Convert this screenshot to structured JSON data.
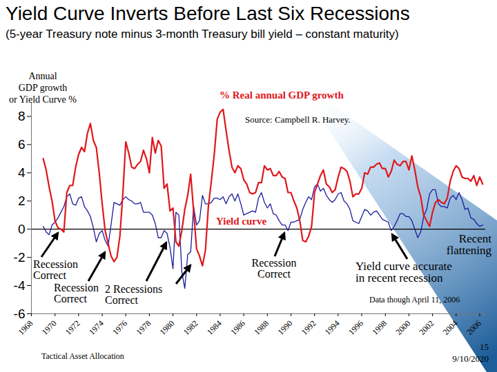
{
  "chart_data": {
    "type": "line",
    "title": "Yield Curve Inverts Before Last Six Recessions",
    "subtitle": "(5-year Treasury note minus 3-month Treasury bill yield – constant maturity)",
    "y_label": [
      "Annual",
      "GDP growth",
      "or Yield Curve %"
    ],
    "source": "Source: Campbell R. Harvey.",
    "note": "Data though April 11, 2006",
    "annotations": [
      {
        "text": [
          "Recession",
          "Correct"
        ]
      },
      {
        "text": [
          "Recession",
          "Correct"
        ]
      },
      {
        "text": [
          "2 Recessions",
          "Correct"
        ]
      },
      {
        "text": [
          "Recession",
          "Correct"
        ]
      },
      {
        "text": [
          "Yield curve accurate",
          "in recent recession"
        ]
      },
      {
        "text": [
          "Recent",
          "flattening"
        ]
      }
    ],
    "footer": {
      "left": "Tactical Asset Allocation",
      "page": "15",
      "date": "9/10/2020"
    },
    "x": [
      1969,
      1969.25,
      1969.5,
      1969.75,
      1970,
      1970.25,
      1970.5,
      1970.75,
      1971,
      1971.25,
      1971.5,
      1971.75,
      1972,
      1972.25,
      1972.5,
      1972.75,
      1973,
      1973.25,
      1973.5,
      1973.75,
      1974,
      1974.25,
      1974.5,
      1974.75,
      1975,
      1975.25,
      1975.5,
      1975.75,
      1976,
      1976.25,
      1976.5,
      1976.75,
      1977,
      1977.25,
      1977.5,
      1977.75,
      1978,
      1978.25,
      1978.5,
      1978.75,
      1979,
      1979.25,
      1979.5,
      1979.75,
      1980,
      1980.25,
      1980.5,
      1980.75,
      1981,
      1981.25,
      1981.5,
      1981.75,
      1982,
      1982.25,
      1982.5,
      1982.75,
      1983,
      1983.25,
      1983.5,
      1983.75,
      1984,
      1984.25,
      1984.5,
      1984.75,
      1985,
      1985.25,
      1985.5,
      1985.75,
      1986,
      1986.25,
      1986.5,
      1986.75,
      1987,
      1987.25,
      1987.5,
      1987.75,
      1988,
      1988.25,
      1988.5,
      1988.75,
      1989,
      1989.25,
      1989.5,
      1989.75,
      1990,
      1990.25,
      1990.5,
      1990.75,
      1991,
      1991.25,
      1991.5,
      1991.75,
      1992,
      1992.25,
      1992.5,
      1992.75,
      1993,
      1993.25,
      1993.5,
      1993.75,
      1994,
      1994.25,
      1994.5,
      1994.75,
      1995,
      1995.25,
      1995.5,
      1995.75,
      1996,
      1996.25,
      1996.5,
      1996.75,
      1997,
      1997.25,
      1997.5,
      1997.75,
      1998,
      1998.25,
      1998.5,
      1998.75,
      1999,
      1999.25,
      1999.5,
      1999.75,
      2000,
      2000.25,
      2000.5,
      2000.75,
      2001,
      2001.25,
      2001.5,
      2001.75,
      2002,
      2002.25,
      2002.5,
      2002.75,
      2003,
      2003.25,
      2003.5,
      2003.75,
      2004,
      2004.25,
      2004.5,
      2004.75,
      2005,
      2005.25,
      2005.5,
      2005.75,
      2006,
      2006.25
    ],
    "series": [
      {
        "name": "% Real annual GDP growth",
        "color": "#e0161b",
        "values": [
          5.0,
          4.2,
          3.0,
          2.0,
          0.6,
          0.1,
          0.0,
          -0.2,
          2.6,
          3.1,
          3.1,
          4.4,
          5.3,
          5.8,
          5.5,
          6.8,
          7.5,
          6.3,
          5.8,
          4.0,
          1.8,
          -0.1,
          -1.0,
          -1.9,
          -2.3,
          -2.0,
          -0.5,
          2.5,
          6.2,
          5.4,
          4.4,
          4.3,
          4.6,
          4.8,
          5.6,
          5.0,
          4.0,
          6.5,
          5.4,
          6.3,
          5.9,
          2.9,
          3.2,
          1.3,
          1.5,
          -0.9,
          -1.2,
          -0.1,
          1.4,
          2.4,
          3.9,
          1.3,
          -1.4,
          -1.9,
          -2.6,
          -1.5,
          1.6,
          3.4,
          5.3,
          7.8,
          8.3,
          8.5,
          7.0,
          5.6,
          4.4,
          4.0,
          4.5,
          4.3,
          3.5,
          3.2,
          2.6,
          2.5,
          2.6,
          3.3,
          3.3,
          4.5,
          4.2,
          4.3,
          3.8,
          3.8,
          4.1,
          3.7,
          3.6,
          2.6,
          2.6,
          2.0,
          1.5,
          0.6,
          -0.8,
          -0.9,
          -0.5,
          0.2,
          2.6,
          3.2,
          3.8,
          4.2,
          3.2,
          3.0,
          2.6,
          2.8,
          3.7,
          4.4,
          4.3,
          4.1,
          3.4,
          2.3,
          2.5,
          2.5,
          2.9,
          4.0,
          3.9,
          4.4,
          4.4,
          4.6,
          4.7,
          4.3,
          4.3,
          3.7,
          4.1,
          4.9,
          4.6,
          4.5,
          4.8,
          4.8,
          4.2,
          5.2,
          4.2,
          3.0,
          2.3,
          1.0,
          0.6,
          0.2,
          1.2,
          1.9,
          2.1,
          1.9,
          1.8,
          2.2,
          3.4,
          4.1,
          4.5,
          4.3,
          3.7,
          3.6,
          3.6,
          3.4,
          3.8,
          3.1,
          3.7,
          3.2
        ]
      },
      {
        "name": "Yield curve",
        "color": "#1a1a9c",
        "values": [
          0.2,
          -0.2,
          -0.4,
          0.3,
          0.5,
          0.8,
          1.2,
          1.6,
          2.3,
          2.5,
          1.8,
          1.7,
          2.2,
          2.3,
          1.6,
          1.3,
          0.9,
          0.1,
          -0.9,
          -0.3,
          -0.1,
          -0.8,
          -1.2,
          0.3,
          1.9,
          1.8,
          1.7,
          2.1,
          2.3,
          2.1,
          2.0,
          1.8,
          1.8,
          1.9,
          1.2,
          1.2,
          1.2,
          1.0,
          0.4,
          -0.6,
          -0.6,
          -0.1,
          -0.3,
          -1.3,
          -2.8,
          1.2,
          1.0,
          -3.0,
          -4.2,
          -1.8,
          -1.6,
          1.6,
          0.3,
          0.6,
          2.4,
          1.8,
          1.8,
          1.9,
          2.2,
          2.2,
          2.1,
          2.3,
          1.8,
          2.3,
          2.5,
          2.0,
          2.5,
          1.8,
          1.0,
          1.1,
          1.2,
          1.3,
          1.2,
          2.2,
          2.6,
          1.9,
          1.5,
          1.8,
          1.1,
          1.0,
          0.6,
          0.3,
          0.3,
          -0.1,
          0.5,
          0.5,
          0.6,
          0.7,
          1.4,
          1.9,
          2.3,
          2.1,
          3.0,
          3.2,
          2.7,
          2.9,
          2.4,
          2.1,
          1.9,
          2.1,
          2.5,
          2.6,
          2.0,
          1.8,
          1.4,
          0.6,
          0.5,
          0.4,
          0.9,
          1.4,
          1.3,
          1.0,
          1.2,
          1.3,
          1.0,
          0.7,
          0.6,
          0.5,
          -0.1,
          0.2,
          0.6,
          1.1,
          1.1,
          0.9,
          0.9,
          0.6,
          0.0,
          -0.6,
          -0.2,
          0.9,
          1.4,
          2.5,
          2.8,
          2.8,
          1.8,
          1.6,
          1.6,
          1.5,
          2.2,
          2.4,
          2.1,
          2.6,
          2.1,
          1.4,
          1.5,
          0.8,
          0.7,
          0.4,
          0.2,
          0.3
        ]
      }
    ],
    "xlim": [
      1968,
      2006.5
    ],
    "xticks": [
      1968,
      1970,
      1972,
      1974,
      1976,
      1978,
      1980,
      1982,
      1984,
      1986,
      1988,
      1990,
      1992,
      1994,
      1996,
      1998,
      2000,
      2002,
      2004,
      2006
    ],
    "ylim": [
      -6,
      9
    ],
    "yticks": [
      -6,
      -4,
      -2,
      0,
      2,
      4,
      6,
      8
    ]
  }
}
